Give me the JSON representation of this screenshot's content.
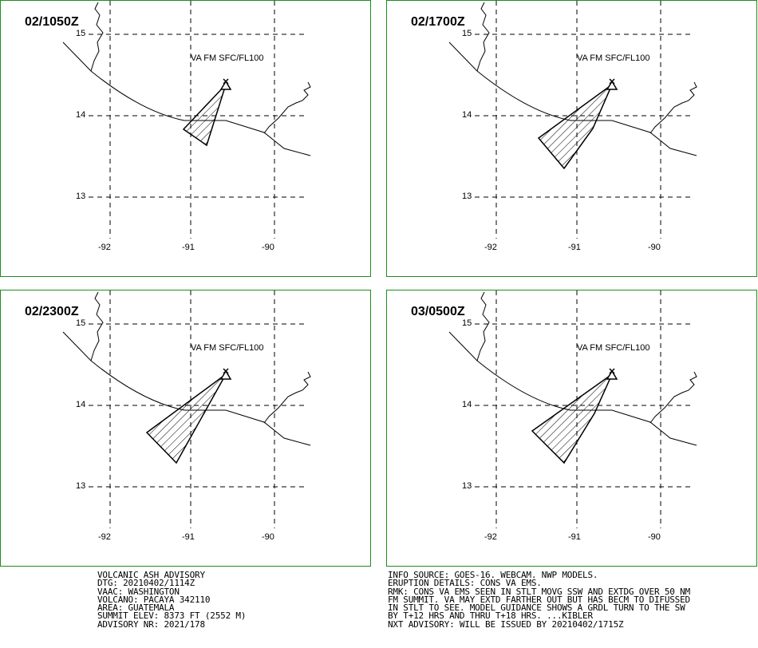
{
  "panels": [
    {
      "time": "02/1050Z",
      "forecast": "VA FM SFC/FL100",
      "ash_polygon": "small"
    },
    {
      "time": "02/1700Z",
      "forecast": "VA FM SFC/FL100",
      "ash_polygon": "medium"
    },
    {
      "time": "02/2300Z",
      "forecast": "VA FM SFC/FL100",
      "ash_polygon": "large"
    },
    {
      "time": "03/0500Z",
      "forecast": "VA FM SFC/FL100",
      "ash_polygon": "large-west"
    }
  ],
  "axes": {
    "lat_labels": [
      "15",
      "14",
      "13"
    ],
    "lon_labels": [
      "-92",
      "-91",
      "-90"
    ]
  },
  "colors": {
    "panel_border": "#1e8c1e",
    "lines": "#000000",
    "background": "#ffffff"
  },
  "icons": {
    "volcano": "triangle-volcano-icon"
  },
  "advisory_left": [
    "VOLCANIC ASH ADVISORY",
    "DTG: 20210402/1114Z",
    "VAAC: WASHINGTON",
    "VOLCANO: PACAYA 342110",
    "AREA: GUATEMALA",
    "SUMMIT ELEV: 8373 FT (2552 M)",
    "ADVISORY NR: 2021/178"
  ],
  "advisory_right": [
    "INFO SOURCE: GOES-16. WEBCAM. NWP MODELS.",
    "ERUPTION DETAILS: CONS VA EMS.",
    "RMK: CONS VA EMS SEEN IN STLT MOVG SSW AND EXTDG OVER 50 NM",
    "FM SUMMIT. VA MAY EXTD FARTHER OUT BUT HAS BECM TO DIFUSSED",
    "IN STLT TO SEE. MODEL GUIDANCE SHOWS A GRDL TURN TO THE SW",
    "BY T+12 HRS AND THRU T+18 HRS. ...KIBLER",
    "NXT ADVISORY: WILL BE ISSUED BY 20210402/1715Z"
  ]
}
